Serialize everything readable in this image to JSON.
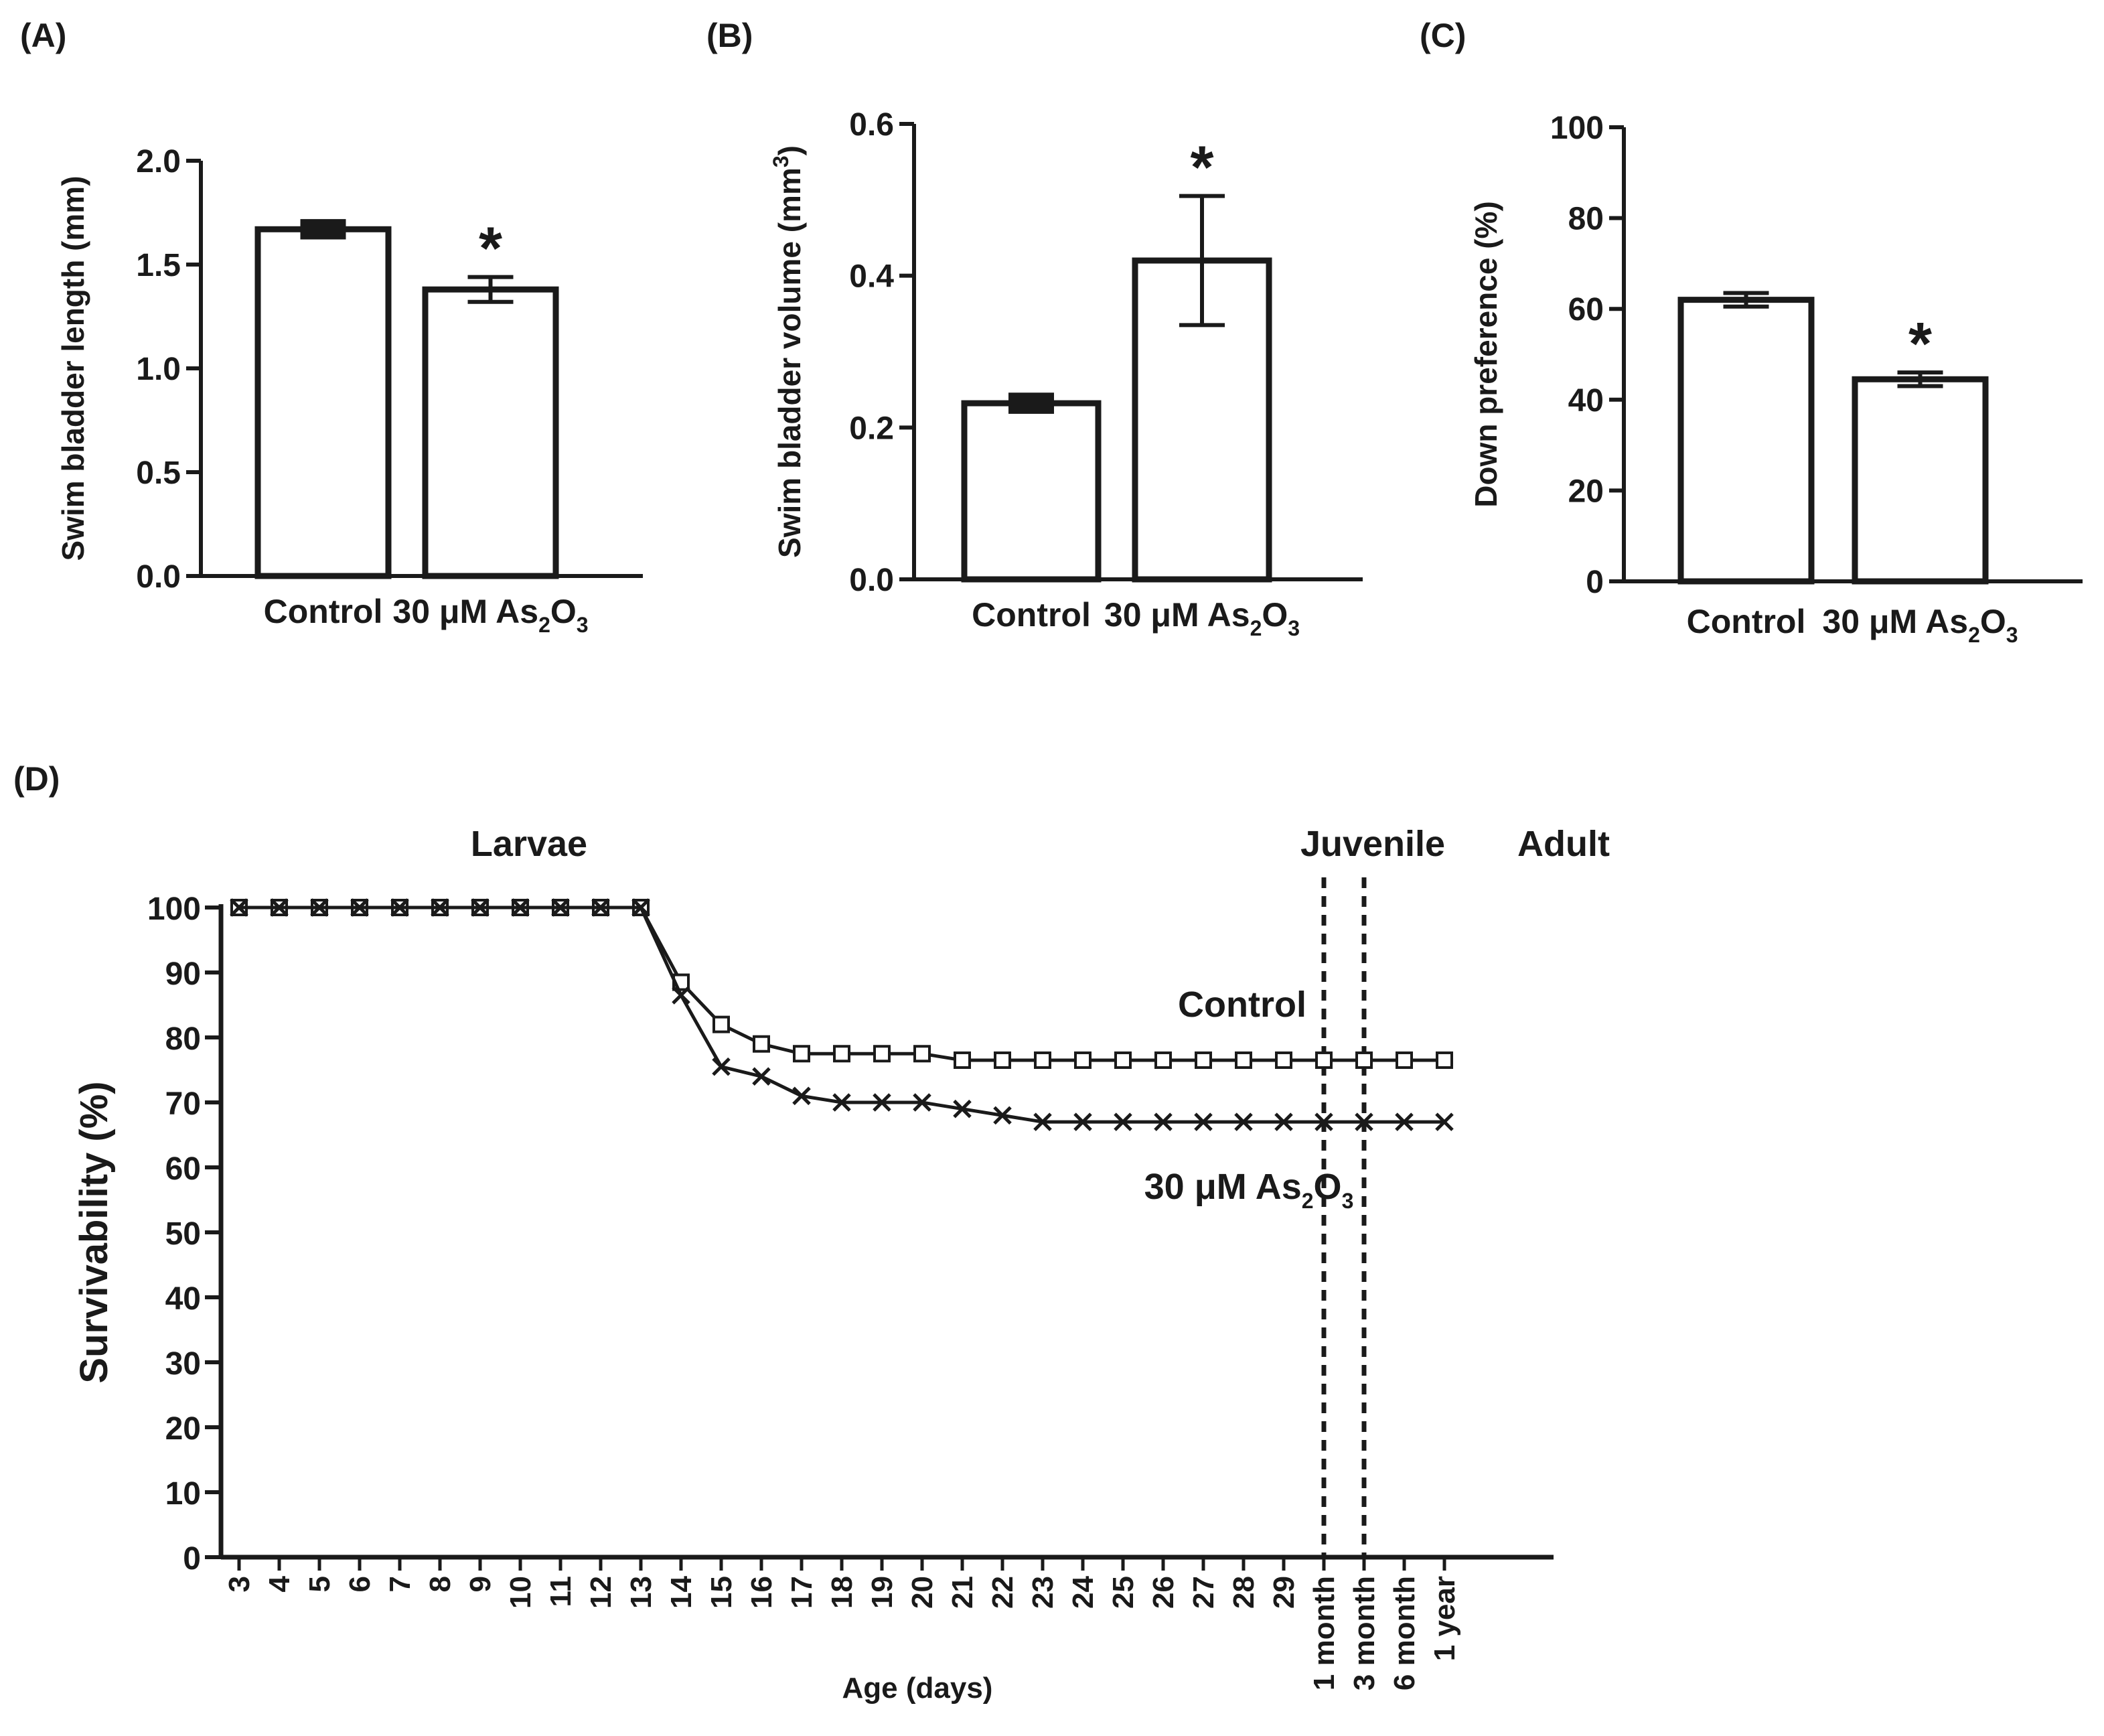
{
  "chart_data": [
    {
      "type": "bar",
      "panel_label": "(A)",
      "ylabel": "Swim bladder length (mm)",
      "ylim": [
        0,
        2.0
      ],
      "yticks": [
        "0.0",
        "0.5",
        "1.0",
        "1.5",
        "2.0"
      ],
      "categories": [
        "Control",
        "30 μM As2O3"
      ],
      "category_labels": [
        {
          "main": "Control",
          "parts": []
        },
        {
          "main": "30 μM As",
          "parts": [
            {
              "t": "2",
              "sub": true
            },
            {
              "t": "O",
              "sub": false
            },
            {
              "t": "3",
              "sub": true
            }
          ]
        }
      ],
      "values": [
        1.67,
        1.38
      ],
      "errors": [
        0.02,
        0.06
      ],
      "significance": [
        "",
        "*"
      ]
    },
    {
      "type": "bar",
      "panel_label": "(B)",
      "ylabel": "Swim bladder volume (mm",
      "ylabel_sup": "3",
      "ylabel_end": ")",
      "ylim": [
        0,
        0.6
      ],
      "yticks": [
        "0.0",
        "0.2",
        "0.4",
        "0.6"
      ],
      "categories": [
        "Control",
        "30 μM As2O3"
      ],
      "category_labels": [
        {
          "main": "Control",
          "parts": []
        },
        {
          "main": "30 μM As",
          "parts": [
            {
              "t": "2",
              "sub": true
            },
            {
              "t": "O",
              "sub": false
            },
            {
              "t": "3",
              "sub": true
            }
          ]
        }
      ],
      "values": [
        0.232,
        0.42
      ],
      "errors": [
        0.006,
        0.085
      ],
      "significance": [
        "",
        "*"
      ]
    },
    {
      "type": "bar",
      "panel_label": "(C)",
      "ylabel": "Down preference (%)",
      "ylim": [
        0,
        100
      ],
      "yticks": [
        "0",
        "20",
        "40",
        "60",
        "80",
        "100"
      ],
      "categories": [
        "Control",
        "30 μM As2O3"
      ],
      "category_labels": [
        {
          "main": "Control",
          "parts": []
        },
        {
          "main": "30 μM As",
          "parts": [
            {
              "t": "2",
              "sub": true
            },
            {
              "t": "O",
              "sub": false
            },
            {
              "t": "3",
              "sub": true
            }
          ]
        }
      ],
      "values": [
        62,
        44.5
      ],
      "errors": [
        1.5,
        1.5
      ],
      "significance": [
        "",
        "*"
      ]
    },
    {
      "type": "line",
      "panel_label": "(D)",
      "xlabel": "Age (days)",
      "ylabel": "Survivability (%)",
      "ylim": [
        0,
        100
      ],
      "yticks": [
        "0",
        "10",
        "20",
        "30",
        "40",
        "50",
        "60",
        "70",
        "80",
        "90",
        "100"
      ],
      "x": [
        "3",
        "4",
        "5",
        "6",
        "7",
        "8",
        "9",
        "10",
        "11",
        "12",
        "13",
        "14",
        "15",
        "16",
        "17",
        "18",
        "19",
        "20",
        "21",
        "22",
        "23",
        "24",
        "25",
        "26",
        "27",
        "28",
        "29",
        "1 month",
        "3 month",
        "6 month",
        "1 year"
      ],
      "series": [
        {
          "name": "Control",
          "marker": "square",
          "values": [
            100,
            100,
            100,
            100,
            100,
            100,
            100,
            100,
            100,
            100,
            100,
            88.5,
            82,
            79,
            77.5,
            77.5,
            77.5,
            77.5,
            76.5,
            76.5,
            76.5,
            76.5,
            76.5,
            76.5,
            76.5,
            76.5,
            76.5,
            76.5,
            76.5,
            76.5,
            76.5
          ]
        },
        {
          "name": "30 μM As2O3",
          "marker": "x",
          "values": [
            100,
            100,
            100,
            100,
            100,
            100,
            100,
            100,
            100,
            100,
            100,
            86.5,
            75.5,
            74,
            71,
            70,
            70,
            70,
            69,
            68,
            67,
            67,
            67,
            67,
            67,
            67,
            67,
            67,
            67,
            67,
            67
          ]
        }
      ],
      "vlines_at": [
        "1 month",
        "3 month"
      ],
      "annotations": {
        "stage_larvae": "Larvae",
        "stage_juvenile": "Juvenile",
        "stage_adult": "Adult",
        "label_control": "Control",
        "label_treated_main": "30 μM As",
        "label_treated_parts": [
          {
            "t": "2",
            "sub": true
          },
          {
            "t": "O",
            "sub": false
          },
          {
            "t": "3",
            "sub": true
          }
        ]
      }
    }
  ]
}
